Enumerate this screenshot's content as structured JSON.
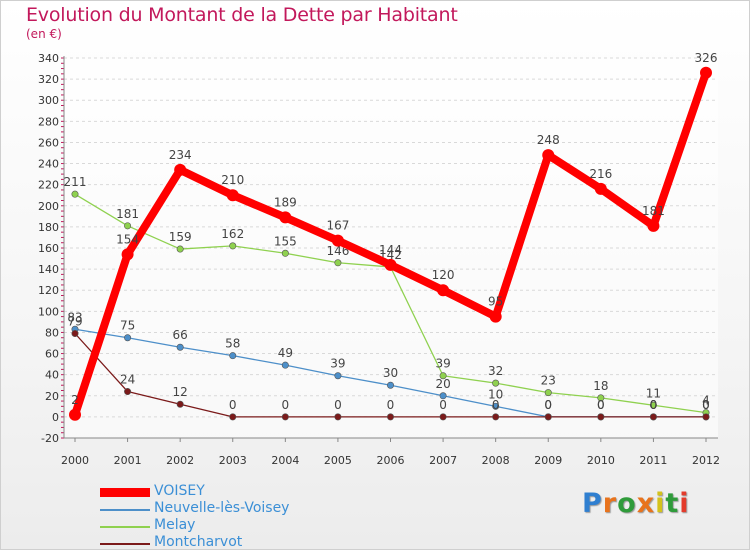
{
  "header": {
    "title": "Evolution du Montant de la Dette par Habitant",
    "unit": "(en €)"
  },
  "brand": {
    "text": "Proxiti",
    "letter_colors": [
      "#2f7fd0",
      "#e8731c",
      "#2f9b3a",
      "#e8731c",
      "#d4c21c",
      "#2f9b3a",
      "#e33b2b"
    ]
  },
  "chart_data": {
    "type": "line",
    "title": "Evolution du Montant de la Dette par Habitant",
    "subtitle": "(en €)",
    "xlabel": "",
    "ylabel": "",
    "x": [
      "2000",
      "2001",
      "2002",
      "2003",
      "2004",
      "2005",
      "2006",
      "2007",
      "2008",
      "2009",
      "2010",
      "2011",
      "2012"
    ],
    "y_ticks": [
      -20,
      0,
      20,
      40,
      60,
      80,
      100,
      120,
      140,
      160,
      180,
      200,
      220,
      240,
      260,
      280,
      300,
      320,
      340
    ],
    "ylim": [
      -20,
      340
    ],
    "grid": "horizontal",
    "legend_position": "bottom-left",
    "series": [
      {
        "name": "VOISEY",
        "color": "#ff0000",
        "emphasis": "thick",
        "values": [
          2,
          154,
          234,
          210,
          189,
          167,
          144,
          120,
          95,
          248,
          216,
          181,
          326
        ],
        "labels": [
          "2",
          "154",
          "234",
          "210",
          "189",
          "167",
          "144",
          "120",
          "95",
          "248",
          "216",
          "181",
          "326"
        ]
      },
      {
        "name": "Neuvelle-lès-Voisey",
        "color": "#4d8fc9",
        "emphasis": "thin",
        "values": [
          83,
          75,
          66,
          58,
          49,
          39,
          30,
          20,
          10,
          0,
          0,
          0,
          0
        ],
        "labels": [
          "83",
          "75",
          "66",
          "58",
          "49",
          "39",
          "30",
          "20",
          "10",
          "0",
          "0",
          "0",
          "0"
        ]
      },
      {
        "name": "Melay",
        "color": "#8fd14f",
        "emphasis": "thin",
        "values": [
          211,
          181,
          159,
          162,
          155,
          146,
          142,
          39,
          32,
          23,
          18,
          11,
          4
        ],
        "labels": [
          "211",
          "181",
          "159",
          "162",
          "155",
          "146",
          "142",
          "39",
          "32",
          "23",
          "18",
          "11",
          "4"
        ]
      },
      {
        "name": "Montcharvot",
        "color": "#7b1a1a",
        "emphasis": "thin",
        "values": [
          79,
          24,
          12,
          0,
          0,
          0,
          0,
          0,
          0,
          0,
          0,
          0,
          0
        ],
        "labels": [
          "79",
          "24",
          "12",
          "0",
          "0",
          "0",
          "0",
          "0",
          "0",
          "0",
          "0",
          "0",
          "0"
        ]
      }
    ]
  }
}
